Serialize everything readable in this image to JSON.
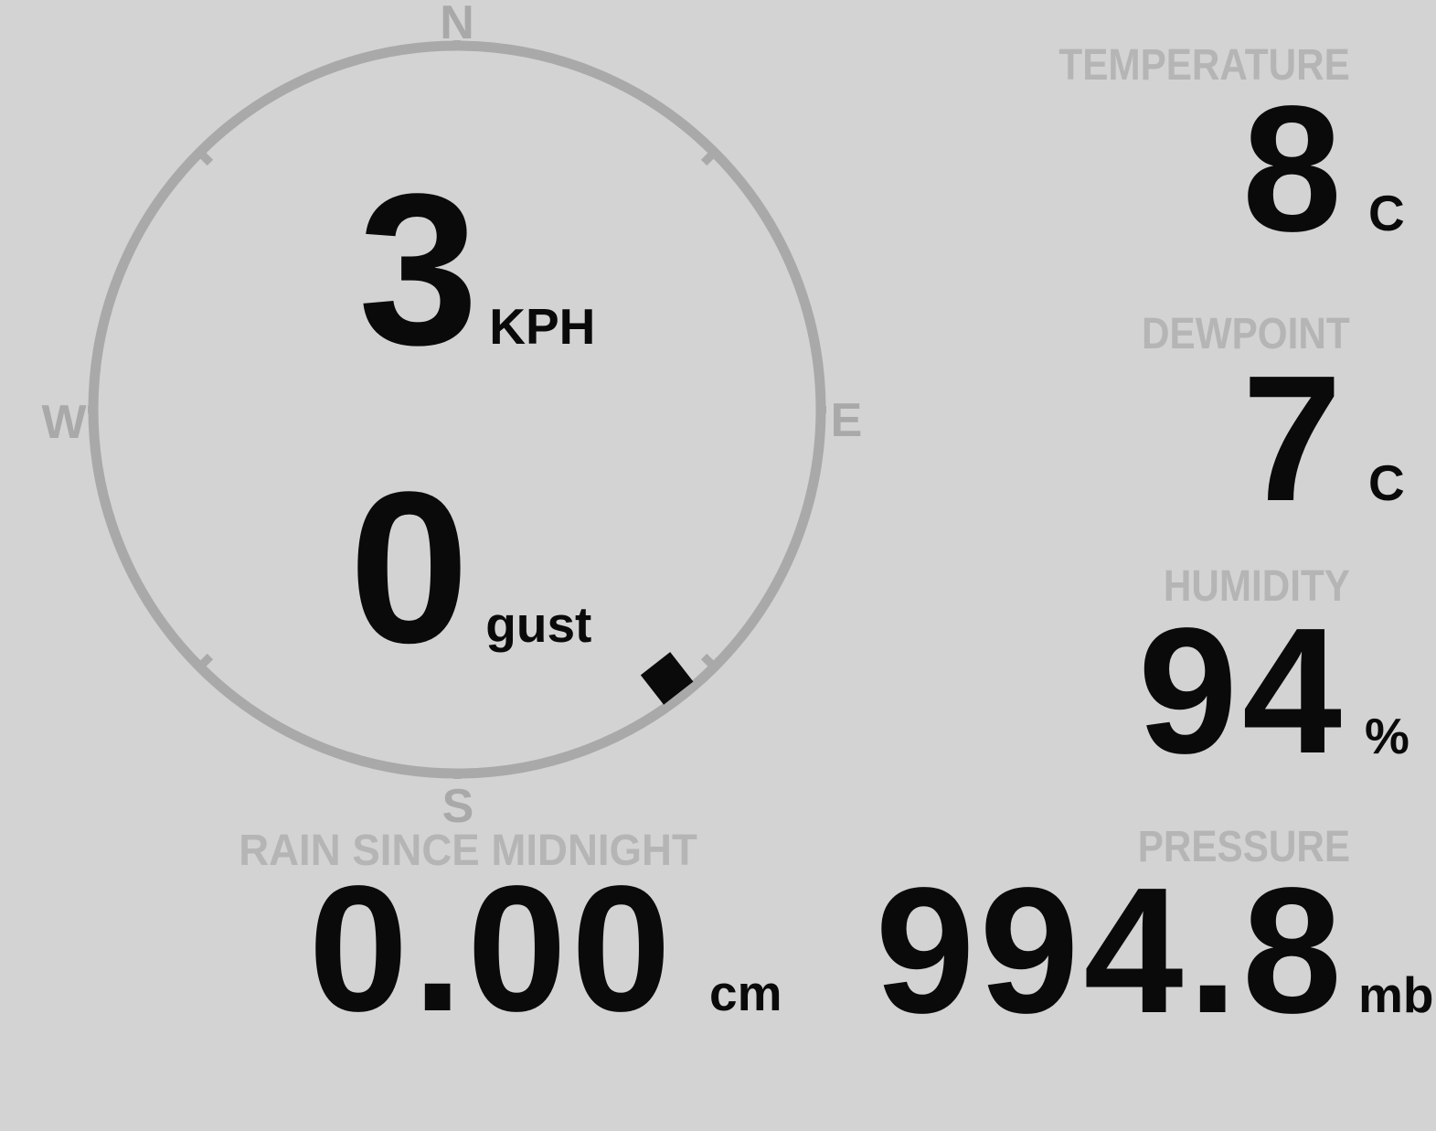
{
  "display": {
    "background": "#d3d3d3",
    "text": "#0a0a0a",
    "label": "#b5b5b5",
    "compass": "#a9a9a9"
  },
  "compass": {
    "cardinals": {
      "north": "N",
      "east": "E",
      "south": "S",
      "west": "W"
    },
    "wind_speed": {
      "value": "3",
      "unit": "KPH"
    },
    "wind_gust": {
      "value": "0",
      "unit": "gust"
    },
    "wind_direction_deg": 142
  },
  "metrics": {
    "temperature": {
      "label": "TEMPERATURE",
      "value": "8",
      "unit": "C"
    },
    "dewpoint": {
      "label": "DEWPOINT",
      "value": "7",
      "unit": "C"
    },
    "humidity": {
      "label": "HUMIDITY",
      "value": "94",
      "unit": "%"
    },
    "pressure": {
      "label": "PRESSURE",
      "value": "994.8",
      "unit": "mb"
    },
    "rain_since_midnight": {
      "label": "RAIN SINCE MIDNIGHT",
      "value": "0.00",
      "unit": "cm"
    }
  }
}
